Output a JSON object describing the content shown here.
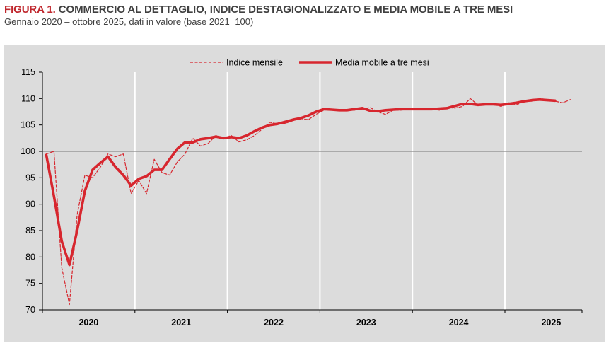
{
  "header": {
    "title_prefix": "FIGURA 1.",
    "title": "COMMERCIO AL DETTAGLIO, INDICE DESTAGIONALIZZATO E MEDIA MOBILE A TRE MESI",
    "subtitle": "Gennaio 2020 – ottobre 2025, dati in valore (base 2021=100)"
  },
  "colors": {
    "series": "#d7262e",
    "background": "#dcdcdc",
    "gridline": "#ffffff",
    "baseline": "#8c8c8c"
  },
  "chart_data": {
    "type": "line",
    "title": "",
    "xlabel": "",
    "ylabel": "",
    "ylim": [
      70,
      115
    ],
    "yticks": [
      70,
      75,
      80,
      85,
      90,
      95,
      100,
      105,
      110,
      115
    ],
    "year_labels": [
      "2020",
      "2021",
      "2022",
      "2023",
      "2024",
      "2025"
    ],
    "reference_line": 100,
    "legend_position": "top-center",
    "x_start": "2020-01",
    "series": [
      {
        "name": "Indice mensile",
        "style": "dashed",
        "values": [
          99.5,
          100.0,
          78.0,
          71.0,
          88.0,
          95.5,
          95.0,
          97.0,
          99.5,
          99.0,
          99.5,
          92.0,
          94.5,
          92.0,
          98.5,
          96.0,
          95.5,
          98.0,
          99.5,
          102.5,
          101.0,
          101.5,
          103.0,
          102.5,
          103.0,
          101.8,
          102.2,
          103.0,
          104.2,
          105.5,
          105.2,
          105.3,
          105.8,
          106.2,
          106.0,
          107.0,
          107.8,
          108.0,
          107.8,
          107.8,
          107.8,
          108.0,
          108.3,
          107.5,
          107.0,
          107.8,
          107.8,
          108.0,
          108.0,
          108.0,
          108.0,
          107.8,
          108.3,
          108.2,
          108.5,
          110.0,
          108.8,
          108.8,
          109.0,
          108.5,
          109.2,
          108.8,
          109.5,
          109.5,
          110.0,
          109.8,
          109.5,
          109.2,
          109.8
        ],
        "values_note": "monthly index, Jan 2020 onward"
      },
      {
        "name": "Media mobile a tre mesi",
        "style": "solid",
        "values": [
          99.3,
          91.5,
          83.0,
          78.5,
          85.0,
          92.5,
          96.5,
          97.8,
          99.0,
          97.0,
          95.5,
          93.5,
          94.8,
          95.3,
          96.5,
          96.5,
          98.5,
          100.5,
          101.7,
          101.7,
          102.3,
          102.5,
          102.8,
          102.5,
          102.7,
          102.5,
          103.0,
          103.8,
          104.5,
          105.0,
          105.2,
          105.6,
          106.0,
          106.3,
          106.8,
          107.5,
          108.0,
          107.9,
          107.8,
          107.8,
          108.0,
          108.2,
          107.7,
          107.6,
          107.8,
          107.9,
          108.0,
          108.0,
          108.0,
          108.0,
          108.0,
          108.1,
          108.2,
          108.6,
          109.0,
          109.0,
          108.8,
          108.9,
          108.9,
          108.8,
          109.0,
          109.2,
          109.5,
          109.7,
          109.8,
          109.7,
          109.6
        ]
      }
    ]
  }
}
